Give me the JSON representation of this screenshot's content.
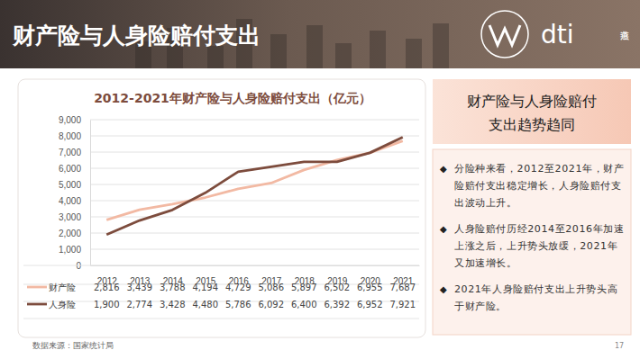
{
  "header": {
    "title": "财产险与人身险赔付支出",
    "logo": "dti",
    "logo_side": "燕道"
  },
  "chart_data": {
    "type": "line",
    "title": "2012-2021年财产险与人身险赔付支出（亿元）",
    "categories": [
      "2012",
      "2013",
      "2014",
      "2015",
      "2016",
      "2017",
      "2018",
      "2019",
      "2020",
      "2021"
    ],
    "series": [
      {
        "name": "财产险",
        "color": "#f2b9a3",
        "values": [
          2816,
          3439,
          3788,
          4194,
          4729,
          5086,
          5897,
          6502,
          6955,
          7687
        ],
        "value_labels": [
          "2,816",
          "3,439",
          "3,788",
          "4,194",
          "4,729",
          "5,086",
          "5,897",
          "6,502",
          "6,955",
          "7,687"
        ]
      },
      {
        "name": "人身险",
        "color": "#7d4c3d",
        "values": [
          1900,
          2774,
          3428,
          4480,
          5786,
          6092,
          6400,
          6392,
          6952,
          7921
        ],
        "value_labels": [
          "1,900",
          "2,774",
          "3,428",
          "4,480",
          "5,786",
          "6,092",
          "6,400",
          "6,392",
          "6,952",
          "7,921"
        ]
      }
    ],
    "ylim": [
      0,
      9000
    ],
    "yticks": [
      0,
      {
        "value": 1000,
        "label": "1,000"
      },
      {
        "value": 2000,
        "label": "2,000"
      },
      {
        "value": 3000,
        "label": "3,000"
      },
      {
        "value": 4000,
        "label": "4,000"
      },
      {
        "value": 5000,
        "label": "5,000"
      },
      {
        "value": 6000,
        "label": "6,000"
      },
      {
        "value": 7000,
        "label": "7,000"
      },
      {
        "value": 8000,
        "label": "8,000"
      },
      {
        "value": 9000,
        "label": "9,000"
      }
    ],
    "grid": true
  },
  "sidebar": {
    "heading": [
      "财产险与人身险赔付",
      "支出趋势趋同"
    ],
    "bullets": [
      "分险种来看，2012至2021年，财产险赔付支出稳定增长，人身险赔付支出波动上升。",
      "人身险赔付历经2014至2016年加速上涨之后，上升势头放缓，2021年又加速增长。",
      "2021年人身险赔付支出上升势头高于财产险。"
    ]
  },
  "footer": {
    "source": "数据来源：国家统计局",
    "page": "17"
  }
}
